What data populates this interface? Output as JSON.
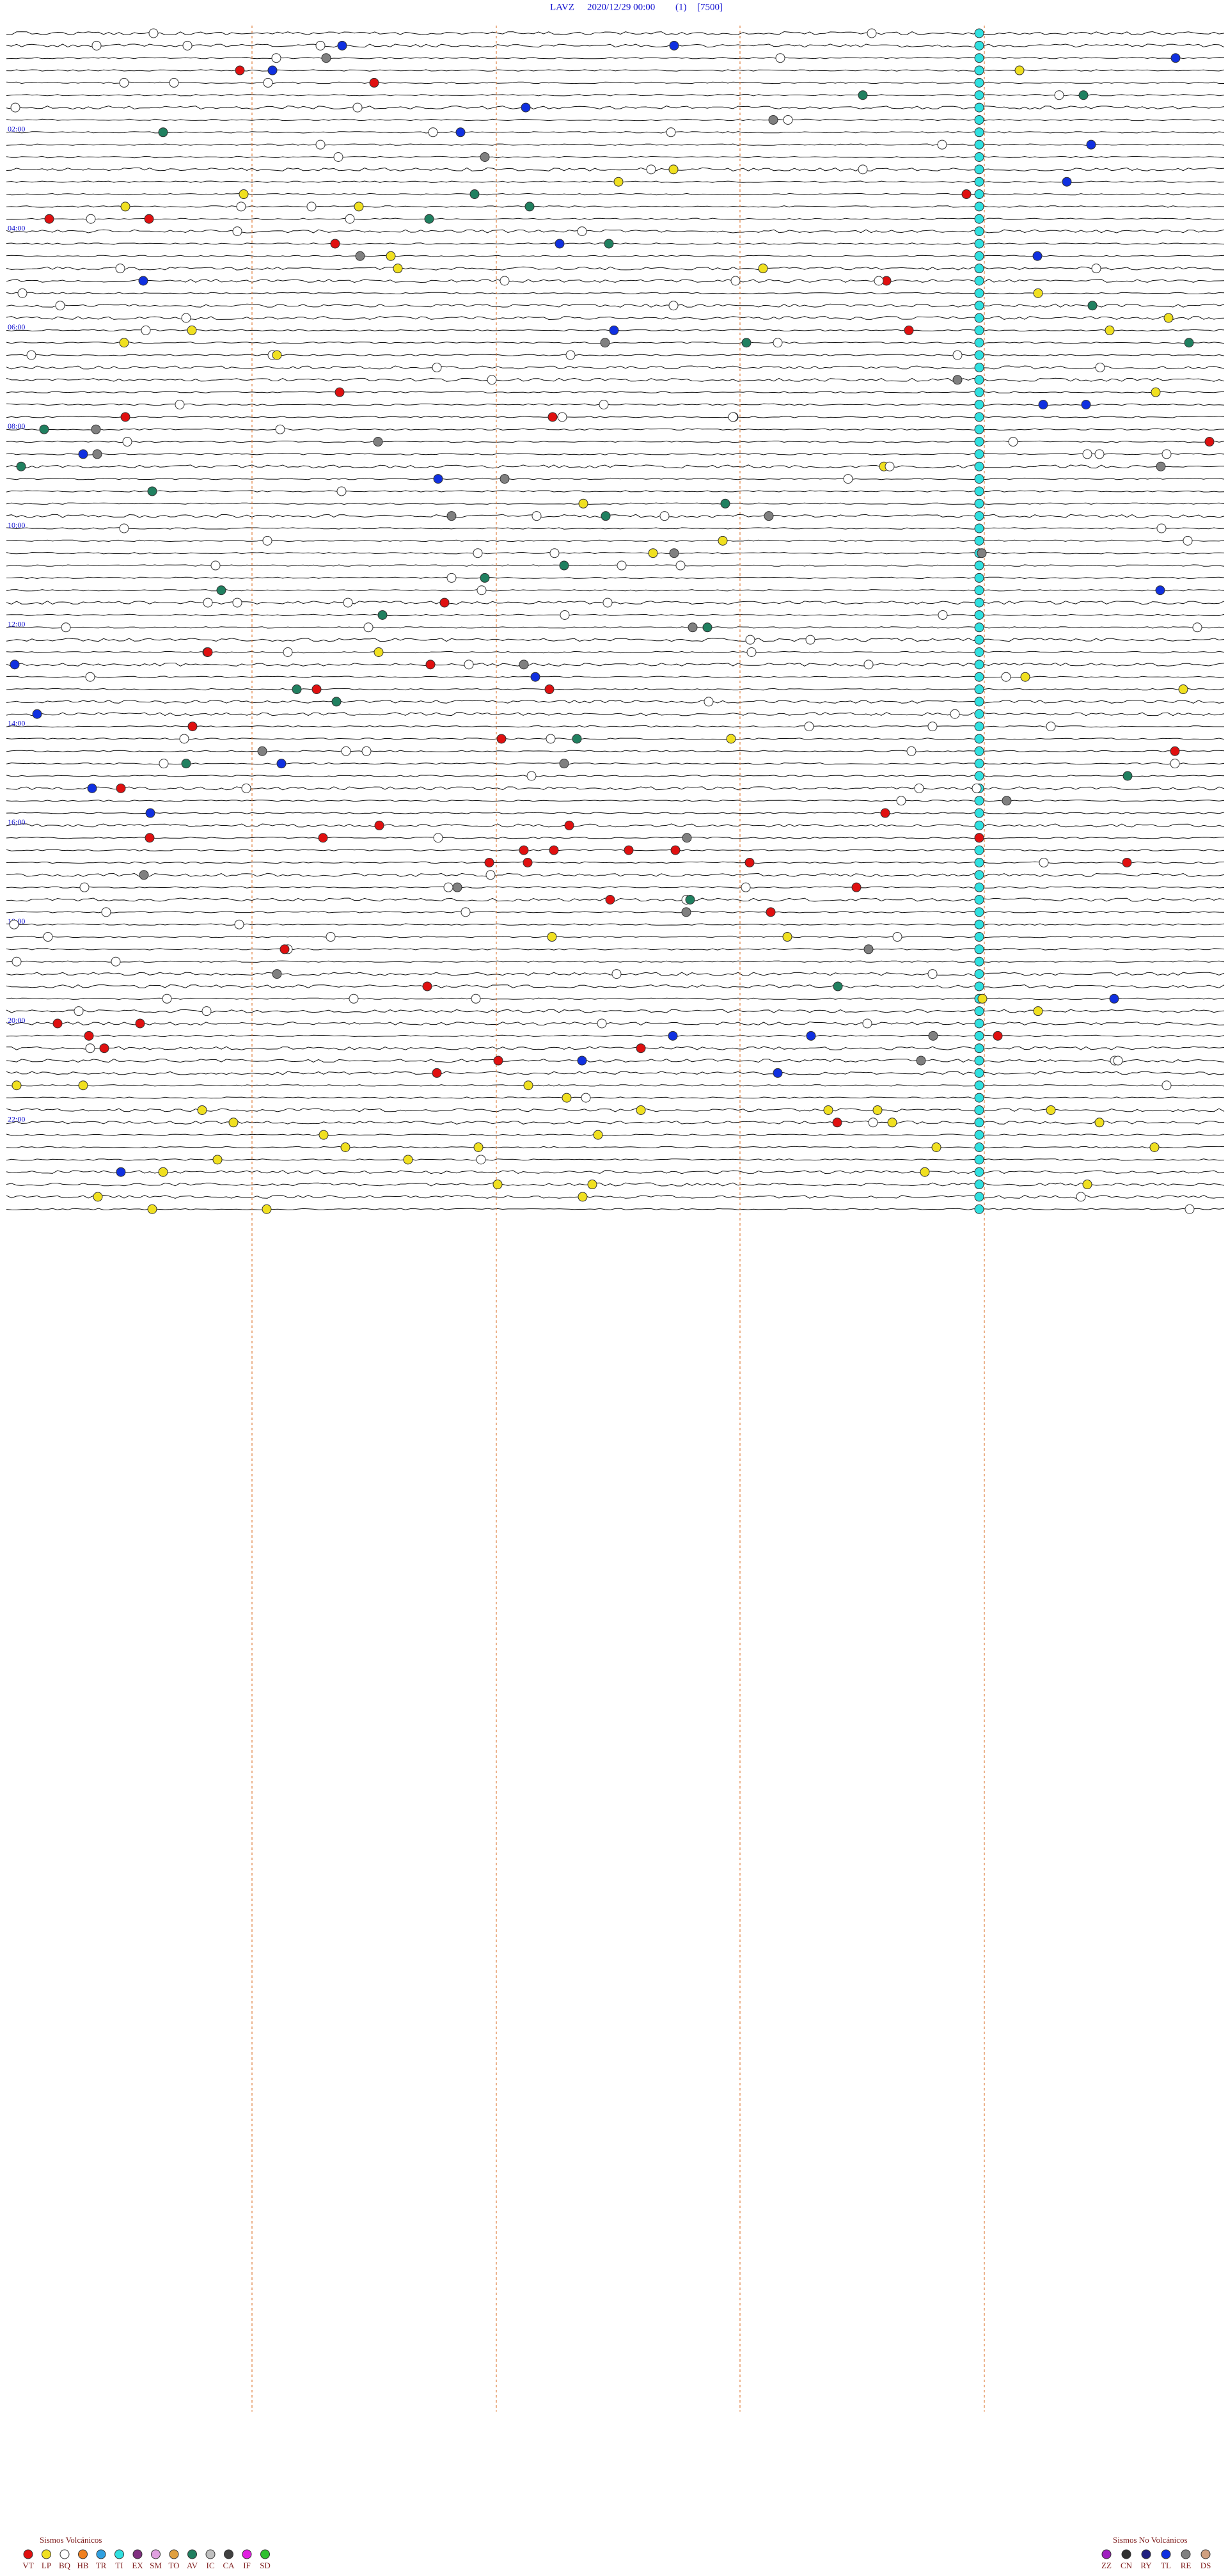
{
  "header": {
    "station": "LAVZ",
    "datetime": "2020/12/29 00:00",
    "mode": "(1)",
    "scale": "[7500]"
  },
  "hour_labels": [
    "02:00",
    "04:00",
    "06:00",
    "08:00",
    "10:00",
    "12:00",
    "14:00",
    "16:00",
    "18:00",
    "20:00",
    "22:00"
  ],
  "legend_volcanic": {
    "title": "Sismos Volcánicos",
    "items": [
      {
        "code": "VT",
        "color": "#e01010"
      },
      {
        "code": "LP",
        "color": "#f0e020"
      },
      {
        "code": "BQ",
        "color": "#ffffff"
      },
      {
        "code": "HB",
        "color": "#f08020"
      },
      {
        "code": "TR",
        "color": "#30a0e0"
      },
      {
        "code": "TI",
        "color": "#30e0e0"
      },
      {
        "code": "EX",
        "color": "#803080"
      },
      {
        "code": "SM",
        "color": "#e0a0e0"
      },
      {
        "code": "TO",
        "color": "#e0a040"
      },
      {
        "code": "AV",
        "color": "#208060"
      },
      {
        "code": "IC",
        "color": "#c0c0c0"
      },
      {
        "code": "CA",
        "color": "#404040"
      },
      {
        "code": "IF",
        "color": "#e020e0"
      },
      {
        "code": "SD",
        "color": "#30c030"
      }
    ]
  },
  "legend_non_volcanic": {
    "title": "Sismos No Volcánicos",
    "items": [
      {
        "code": "ZZ",
        "color": "#a020c0"
      },
      {
        "code": "CN",
        "color": "#303030"
      },
      {
        "code": "RY",
        "color": "#202080"
      },
      {
        "code": "TL",
        "color": "#1030e0"
      },
      {
        "code": "RE",
        "color": "#808080"
      },
      {
        "code": "DS",
        "color": "#d0a080"
      }
    ]
  }
}
